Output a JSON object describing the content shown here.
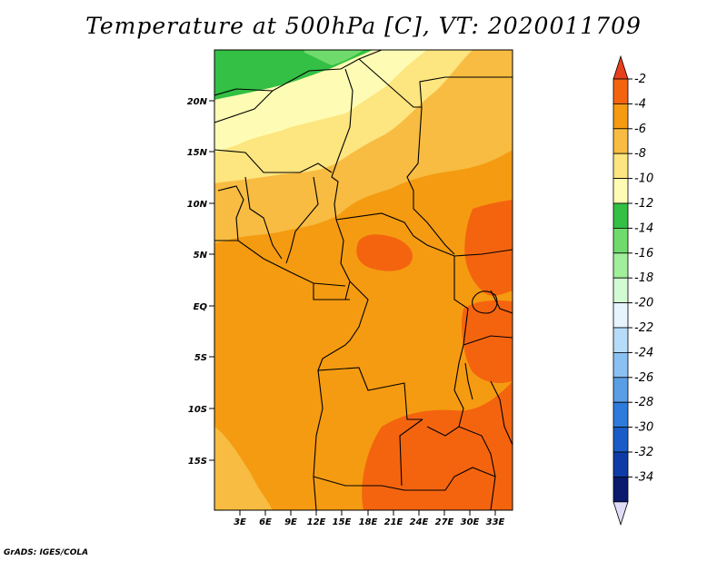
{
  "title": "Temperature at 500hPa [C], VT: 2020011709",
  "credit": "GrADS: IGES/COLA",
  "map": {
    "lat_labels": [
      "20N",
      "15N",
      "10N",
      "5N",
      "EQ",
      "5S",
      "10S",
      "15S"
    ],
    "lon_labels": [
      "3E",
      "6E",
      "9E",
      "12E",
      "15E",
      "18E",
      "21E",
      "24E",
      "27E",
      "30E",
      "33E"
    ]
  },
  "colorbar": {
    "labels": [
      "-2",
      "-4",
      "-6",
      "-8",
      "-10",
      "-12",
      "-14",
      "-16",
      "-18",
      "-20",
      "-22",
      "-24",
      "-26",
      "-28",
      "-30",
      "-32",
      "-34"
    ],
    "colors": [
      "#e8401c",
      "#f4640f",
      "#f59b11",
      "#f7bc41",
      "#fde57f",
      "#fefcb4",
      "#33c044",
      "#6fdb6d",
      "#a1ee9b",
      "#d3fbd3",
      "#e5f4ff",
      "#b6dcfa",
      "#8ac1f2",
      "#5a9ee6",
      "#2f7bdb",
      "#195cc7",
      "#0e3ba6",
      "#0b1a6e",
      "#e0dcf8"
    ]
  }
}
